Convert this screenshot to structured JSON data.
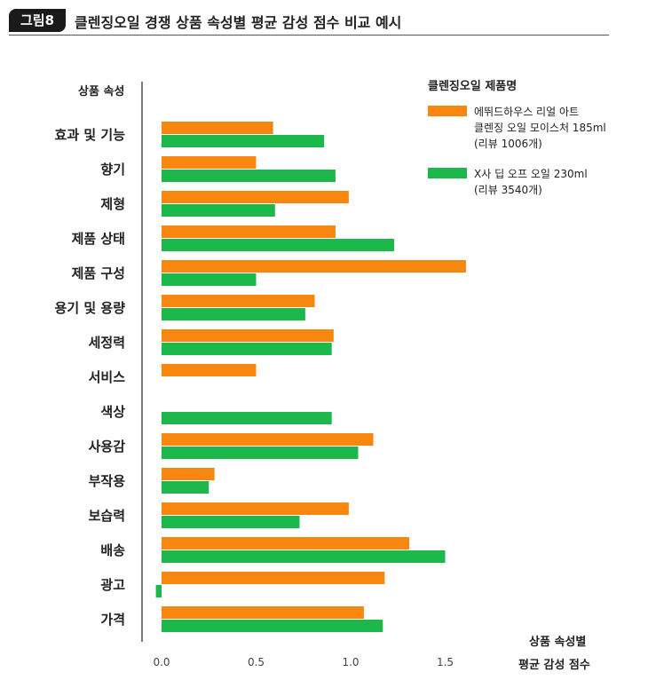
{
  "figure": {
    "tag": "그림8",
    "title": "클렌징오일 경쟁 상품 속성별 평균 감성 점수 비교 예시"
  },
  "colors": {
    "series_a": "#f7870e",
    "series_b": "#1db84b"
  },
  "chart_data": {
    "type": "bar",
    "orientation": "horizontal",
    "ylabel": "상품 속성",
    "xlabel_line1": "상품 속성별",
    "xlabel_line2": "평균 감성 점수",
    "xlim": [
      -0.05,
      1.75
    ],
    "xticks": [
      0.0,
      0.5,
      1.0,
      1.5
    ],
    "xtick_labels": [
      "0.0",
      "0.5",
      "1.0",
      "1.5"
    ],
    "grid": false,
    "legend_title": "클렌징오일 제품명",
    "legend_position": "right",
    "categories": [
      "효과 및 기능",
      "향기",
      "제형",
      "제품 상태",
      "제품 구성",
      "용기 및 용량",
      "세정력",
      "서비스",
      "색상",
      "사용감",
      "부작용",
      "보습력",
      "배송",
      "광고",
      "가격"
    ],
    "series": [
      {
        "name": "에뛰드하우스 리얼 아트\n클렌징 오일 모이스처 185ml",
        "note": "(리뷰 1006개)",
        "values": [
          0.59,
          0.5,
          0.99,
          0.92,
          1.61,
          0.81,
          0.91,
          0.5,
          null,
          1.12,
          0.28,
          0.99,
          1.31,
          1.18,
          1.07
        ]
      },
      {
        "name": "X사 딥 오프 오일 230ml",
        "note": "(리뷰 3540개)",
        "values": [
          0.86,
          0.92,
          0.6,
          1.23,
          0.5,
          0.76,
          0.9,
          null,
          0.9,
          1.04,
          0.25,
          0.73,
          1.5,
          -0.03,
          1.17
        ]
      }
    ]
  }
}
